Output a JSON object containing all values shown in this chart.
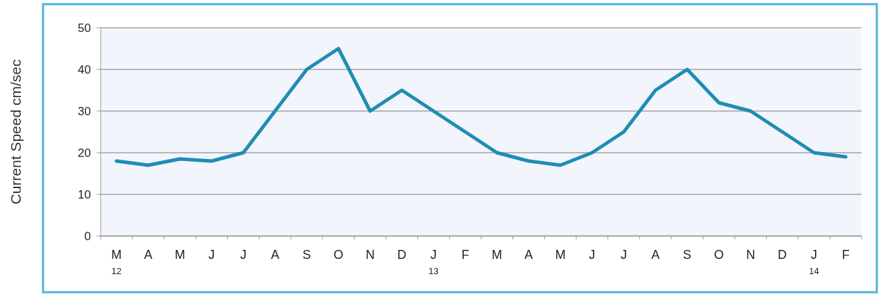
{
  "chart_data": {
    "type": "line",
    "ylabel": "Current Speed cm/sec",
    "categories": [
      "M\n12",
      "A",
      "M",
      "J",
      "J",
      "A",
      "S",
      "O",
      "N",
      "D",
      "J\n13",
      "F",
      "M",
      "A",
      "M",
      "J",
      "J",
      "A",
      "S",
      "O",
      "N",
      "D",
      "J\n14",
      "F"
    ],
    "series": [
      {
        "color": "#1f8db3",
        "values": [
          18,
          17,
          18.5,
          18,
          20,
          30,
          40,
          45,
          30,
          35,
          30,
          25,
          20,
          18,
          17,
          20,
          25,
          35,
          40,
          32,
          30,
          25,
          20,
          19
        ]
      }
    ],
    "ylim": [
      0,
      50
    ],
    "yticks": [
      0,
      10,
      20,
      30,
      40,
      50
    ],
    "grid": "y",
    "marker": "none",
    "line_style": "solid"
  }
}
